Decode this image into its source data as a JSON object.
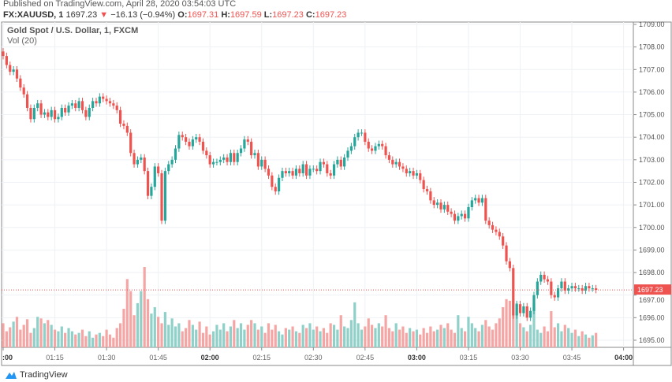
{
  "header": {
    "published": "Published on TradingView.com, April 28, 2020 03:54:03 UTC",
    "symbol": "FX:XAUUSD, 1",
    "last": "1697.23",
    "change": "−16.13 (−0.94%)",
    "change_icon": "triangle-down-icon",
    "o_label": "O:",
    "o": "1697.31",
    "h_label": "H:",
    "h": "1697.59",
    "l_label": "L:",
    "l": "1697.23",
    "c_label": "C:",
    "c": "1697.23"
  },
  "legend": {
    "title": "Gold Spot / U.S. Dollar, 1, FXCM",
    "indicator": "Vol (20)"
  },
  "footer": {
    "brand": "TradingView"
  },
  "colors": {
    "up": "#26a69a",
    "down": "#ef5350",
    "up_vol": "#8fd1c9",
    "down_vol": "#f5a6a4",
    "grid": "#eef1f5"
  },
  "chart_data": {
    "type": "candlestick",
    "interval": "1 minute",
    "ylim": [
      1694.7,
      1709.2
    ],
    "grid": true,
    "y_ticks": [
      "1709.00",
      "1708.00",
      "1707.00",
      "1706.00",
      "1705.00",
      "1704.00",
      "1703.00",
      "1702.00",
      "1701.00",
      "1700.00",
      "1699.00",
      "1698.00",
      "1697.00",
      "1696.00",
      "1695.00"
    ],
    "x_ticks": [
      ":00",
      "01:15",
      "01:30",
      "01:45",
      "02:00",
      "02:15",
      "02:30",
      "02:45",
      "03:00",
      "03:15",
      "03:30",
      "03:45",
      "04:00"
    ],
    "x_ticks_bold": [
      ":00",
      "02:00",
      "03:00",
      "04:00"
    ],
    "start_time": "01:00",
    "last_price_label": "1697.23",
    "first_open": 1707.8,
    "close": [
      1707.6,
      1707.2,
      1706.9,
      1707.0,
      1706.6,
      1706.2,
      1705.9,
      1705.3,
      1704.8,
      1705.3,
      1705.5,
      1705.0,
      1705.1,
      1704.9,
      1705.2,
      1704.8,
      1704.9,
      1705.3,
      1705.1,
      1705.4,
      1705.5,
      1705.3,
      1705.6,
      1705.2,
      1704.9,
      1705.3,
      1705.6,
      1705.5,
      1705.8,
      1705.7,
      1705.6,
      1705.5,
      1705.4,
      1705.2,
      1704.6,
      1704.5,
      1704.2,
      1703.3,
      1702.8,
      1703.0,
      1703.1,
      1702.5,
      1701.4,
      1701.8,
      1702.7,
      1702.4,
      1700.3,
      1702.5,
      1702.8,
      1703.0,
      1703.5,
      1704.1,
      1704.0,
      1703.8,
      1703.6,
      1703.9,
      1704.0,
      1703.8,
      1703.4,
      1703.2,
      1702.8,
      1702.9,
      1702.9,
      1703.0,
      1703.1,
      1702.9,
      1703.3,
      1702.9,
      1703.3,
      1703.5,
      1703.9,
      1703.8,
      1703.2,
      1703.3,
      1702.7,
      1703.0,
      1702.6,
      1702.3,
      1701.8,
      1701.6,
      1702.2,
      1702.5,
      1702.4,
      1702.5,
      1702.3,
      1702.6,
      1702.4,
      1702.8,
      1702.3,
      1702.6,
      1702.6,
      1702.5,
      1702.9,
      1702.8,
      1702.4,
      1702.3,
      1702.8,
      1703.0,
      1702.7,
      1703.1,
      1703.4,
      1703.6,
      1704.0,
      1704.2,
      1704.2,
      1703.8,
      1703.5,
      1703.4,
      1703.6,
      1703.7,
      1703.6,
      1703.2,
      1703.0,
      1702.8,
      1702.9,
      1702.7,
      1702.6,
      1702.4,
      1702.5,
      1702.3,
      1702.4,
      1702.1,
      1701.7,
      1701.6,
      1701.2,
      1701.0,
      1701.1,
      1700.8,
      1701.0,
      1700.7,
      1700.6,
      1700.3,
      1700.5,
      1700.6,
      1700.4,
      1700.9,
      1701.2,
      1701.3,
      1701.1,
      1701.3,
      1700.3,
      1700.1,
      1699.9,
      1699.8,
      1699.6,
      1699.2,
      1698.5,
      1698.2,
      1696.1,
      1696.6,
      1696.2,
      1696.5,
      1696.0,
      1696.3,
      1697.0,
      1697.6,
      1697.9,
      1697.7,
      1697.6,
      1697.0,
      1696.9,
      1697.3,
      1697.6,
      1697.2,
      1697.3,
      1697.4,
      1697.3,
      1697.3,
      1697.2,
      1697.4,
      1697.3,
      1697.3,
      1697.23
    ],
    "volume_relative": [
      30,
      20,
      25,
      32,
      38,
      22,
      28,
      35,
      18,
      24,
      38,
      36,
      30,
      34,
      28,
      22,
      20,
      26,
      18,
      24,
      20,
      16,
      18,
      22,
      14,
      20,
      12,
      16,
      18,
      14,
      22,
      16,
      12,
      24,
      30,
      48,
      85,
      70,
      40,
      55,
      70,
      100,
      60,
      42,
      50,
      38,
      30,
      44,
      28,
      36,
      26,
      30,
      20,
      24,
      34,
      28,
      22,
      32,
      18,
      26,
      16,
      20,
      28,
      22,
      30,
      20,
      26,
      34,
      24,
      30,
      22,
      28,
      34,
      30,
      22,
      26,
      18,
      30,
      22,
      28,
      20,
      16,
      24,
      22,
      26,
      20,
      18,
      28,
      24,
      30,
      22,
      26,
      20,
      24,
      18,
      30,
      28,
      22,
      40,
      26,
      24,
      34,
      56,
      30,
      22,
      26,
      36,
      28,
      24,
      30,
      26,
      40,
      24,
      20,
      30,
      22,
      26,
      18,
      24,
      20,
      22,
      16,
      24,
      18,
      26,
      20,
      22,
      28,
      24,
      30,
      22,
      18,
      40,
      24,
      20,
      38,
      30,
      24,
      20,
      28,
      34,
      26,
      22,
      30,
      36,
      50,
      60,
      58,
      40,
      55,
      30,
      25,
      20,
      28,
      55,
      22,
      18,
      26,
      20,
      45,
      25,
      30,
      20,
      28,
      24,
      18,
      22,
      14,
      20,
      16,
      12,
      15,
      18
    ]
  }
}
